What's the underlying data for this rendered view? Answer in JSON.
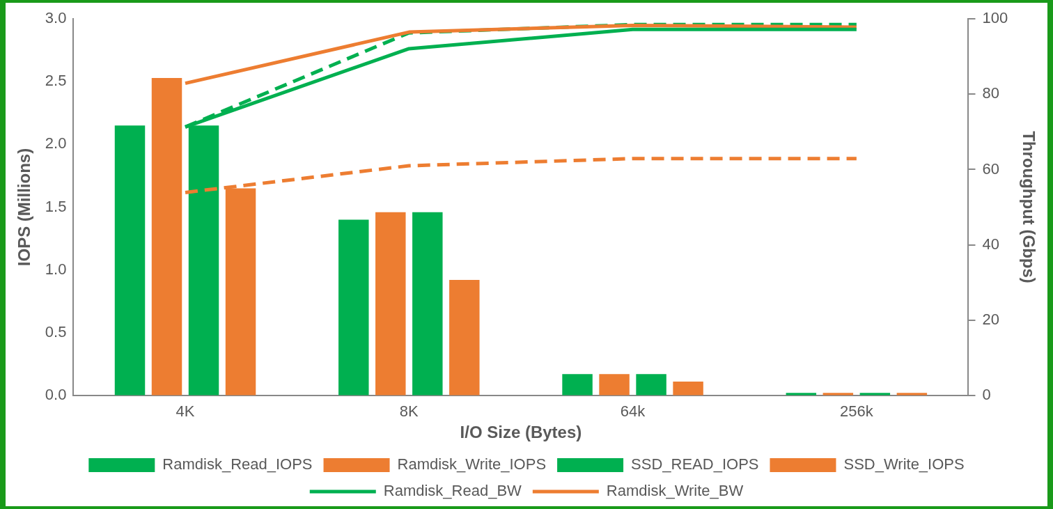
{
  "chart_data": {
    "type": "bar",
    "xlabel": "I/O Size (Bytes)",
    "ylabel": "IOPS (Millions)",
    "y2label": "Throughput (Gbps)",
    "categories": [
      "4K",
      "8K",
      "64k",
      "256k"
    ],
    "series": [
      {
        "name": "Ramdisk_Read_IOPS",
        "color": "#00b050",
        "values": [
          2.15,
          1.4,
          0.17,
          0.02
        ]
      },
      {
        "name": "Ramdisk_Write_IOPS",
        "color": "#ed7d31",
        "values": [
          2.53,
          1.46,
          0.17,
          0.02
        ]
      },
      {
        "name": "SSD_READ_IOPS",
        "color": "#00b050",
        "values": [
          2.15,
          1.46,
          0.17,
          0.02
        ]
      },
      {
        "name": "SSD_Write_IOPS",
        "color": "#ed7d31",
        "values": [
          1.65,
          0.92,
          0.11,
          0.02
        ]
      },
      {
        "name": "Ramdisk_Read_BW",
        "type": "line",
        "axis": "y2",
        "line_style": "solid",
        "color": "#00b050",
        "values": [
          71.3,
          92.1,
          97.2,
          97.2
        ]
      },
      {
        "name": "Ramdisk_Write_BW",
        "type": "line",
        "axis": "y2",
        "line_style": "solid",
        "color": "#ed7d31",
        "values": [
          82.9,
          96.5,
          98.3,
          97.8
        ]
      },
      {
        "type": "line",
        "axis": "y2",
        "line_style": "dashed",
        "color": "#00b050",
        "values": [
          71.3,
          96.3,
          98.5,
          98.5
        ]
      },
      {
        "type": "line",
        "axis": "y2",
        "line_style": "dashed",
        "color": "#ed7d31",
        "values": [
          53.9,
          61.0,
          62.9,
          62.9
        ]
      }
    ],
    "ylim": [
      0,
      3
    ],
    "yticks": [
      {
        "value": 0,
        "label": "0.0"
      },
      {
        "value": 0.5,
        "label": "0.5"
      },
      {
        "value": 1,
        "label": "1.0"
      },
      {
        "value": 1.5,
        "label": "1.5"
      },
      {
        "value": 2,
        "label": "2.0"
      },
      {
        "value": 2.5,
        "label": "2.5"
      },
      {
        "value": 3,
        "label": "3.0"
      }
    ],
    "y2lim": [
      0,
      100
    ],
    "y2ticks": [
      0,
      20,
      40,
      60,
      80,
      100
    ],
    "grid": false,
    "legend": "bottom",
    "marker": "none"
  }
}
